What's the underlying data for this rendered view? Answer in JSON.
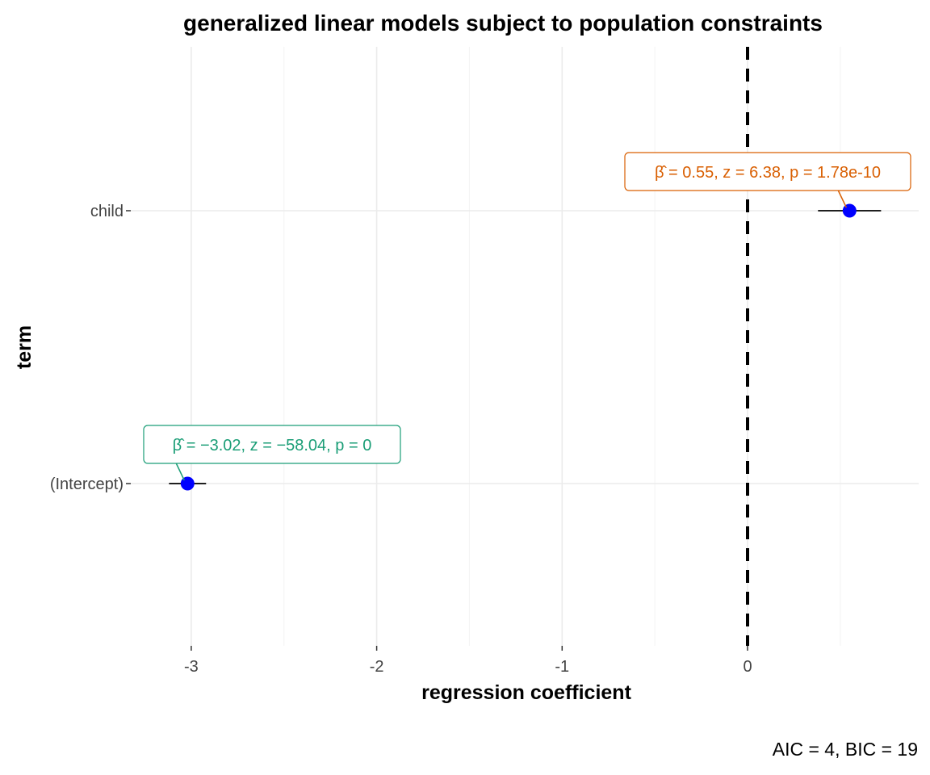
{
  "chart_data": {
    "type": "scatter",
    "title": "generalized linear models subject to population constraints",
    "xlabel": "regression coefficient",
    "ylabel": "term",
    "caption": "AIC = 4, BIC = 19",
    "xlim": [
      -3.3,
      0.92
    ],
    "x_ticks": [
      -3,
      -2,
      -1,
      0
    ],
    "x_tick_labels": [
      "-3",
      "-2",
      "-1",
      "0"
    ],
    "reference_line_x": 0,
    "grid": true,
    "categories": [
      "(Intercept)",
      "child"
    ],
    "series": [
      {
        "points": [
          {
            "term": "(Intercept)",
            "estimate": -3.02,
            "conf_low": -3.12,
            "conf_high": -2.92,
            "label": "β̂ = −3.02,  z = −58.04,  p = 0",
            "label_color": "#1b9e77"
          },
          {
            "term": "child",
            "estimate": 0.55,
            "conf_low": 0.38,
            "conf_high": 0.72,
            "label": "β̂ = 0.55,  z = 6.38,  p = 1.78e-10",
            "label_color": "#d95f02"
          }
        ]
      }
    ],
    "point_color": "#0000ff",
    "ref_line_color": "#000000"
  }
}
